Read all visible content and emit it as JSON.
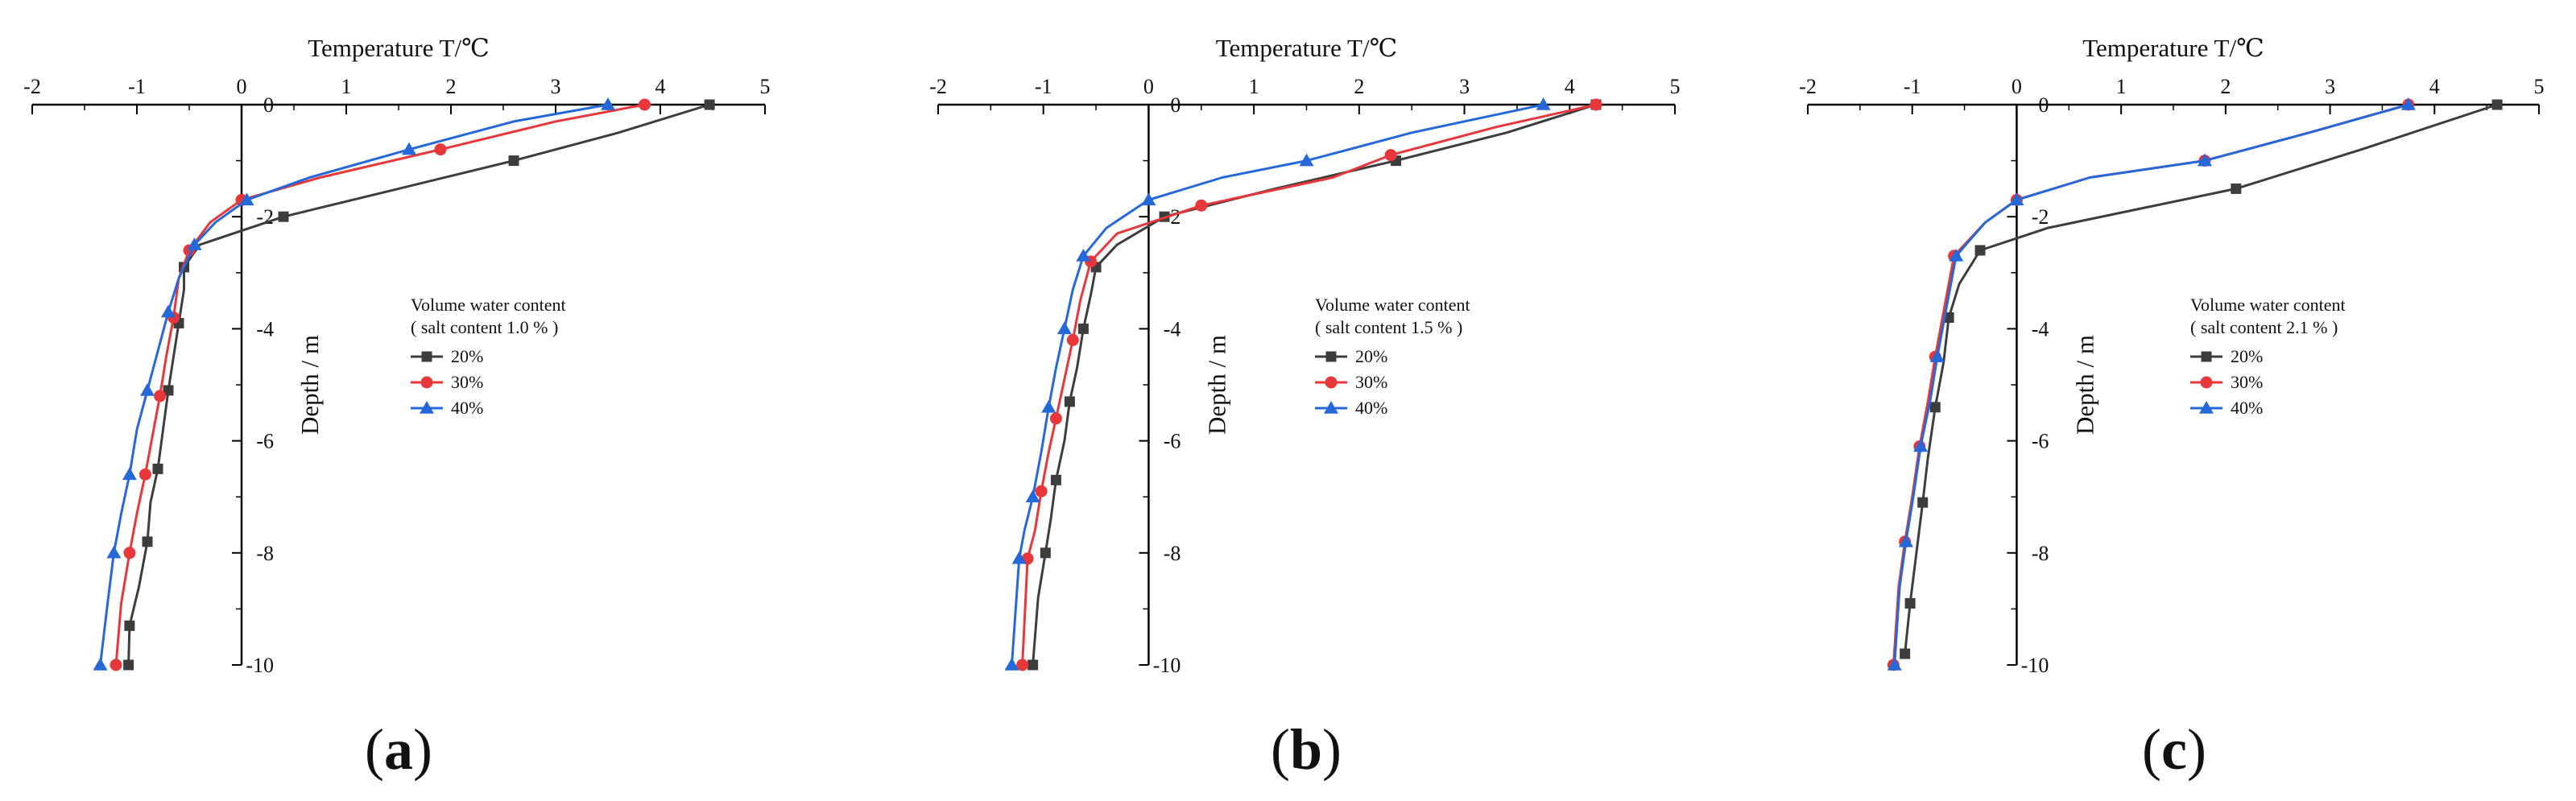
{
  "colors": {
    "s20": "#3d3d3d",
    "s30": "#e8373a",
    "s40": "#2468d9",
    "axis": "#000000"
  },
  "chart_data": [
    {
      "type": "line",
      "panel_label": {
        "open": "(",
        "letter": "a",
        "close": ")"
      },
      "xlabel": "Temperature T/℃",
      "ylabel": "Depth / m",
      "xlim": [
        -2,
        5
      ],
      "ylim": [
        -10,
        0
      ],
      "xticks": [
        "-2",
        "-1",
        "0",
        "1",
        "2",
        "3",
        "4",
        "5"
      ],
      "yticks": [
        "0",
        "-2",
        "-4",
        "-6",
        "-8",
        "-10"
      ],
      "legend_title": "Volume water content",
      "legend_subtitle": "( salt content 1.0 % )",
      "series": [
        {
          "name": "20%",
          "marker": "square",
          "x": [
            4.47,
            3.6,
            2.6,
            1.5,
            0.4,
            -0.4,
            -0.55,
            -0.55,
            -0.6,
            -0.65,
            -0.7,
            -0.75,
            -0.8,
            -0.87,
            -0.9,
            -0.98,
            -1.07,
            -1.08
          ],
          "y": [
            0,
            -0.5,
            -1.0,
            -1.5,
            -2.0,
            -2.5,
            -2.9,
            -3.3,
            -3.9,
            -4.5,
            -5.1,
            -5.8,
            -6.5,
            -7.1,
            -7.8,
            -8.6,
            -9.3,
            -10.0
          ]
        },
        {
          "name": "30%",
          "marker": "circle",
          "x": [
            3.85,
            3.0,
            1.9,
            0.75,
            0.0,
            -0.3,
            -0.5,
            -0.6,
            -0.65,
            -0.72,
            -0.78,
            -0.85,
            -0.92,
            -1.0,
            -1.07,
            -1.15,
            -1.2
          ],
          "y": [
            0,
            -0.3,
            -0.8,
            -1.3,
            -1.7,
            -2.1,
            -2.6,
            -3.1,
            -3.8,
            -4.5,
            -5.2,
            -5.9,
            -6.6,
            -7.3,
            -8.0,
            -8.9,
            -10.0
          ]
        },
        {
          "name": "40%",
          "marker": "triangle",
          "x": [
            3.5,
            2.6,
            1.6,
            0.65,
            0.05,
            -0.25,
            -0.45,
            -0.6,
            -0.7,
            -0.8,
            -0.9,
            -1.0,
            -1.07,
            -1.15,
            -1.22,
            -1.28,
            -1.35
          ],
          "y": [
            0,
            -0.3,
            -0.8,
            -1.3,
            -1.7,
            -2.1,
            -2.5,
            -3.1,
            -3.7,
            -4.4,
            -5.1,
            -5.8,
            -6.6,
            -7.3,
            -8.0,
            -8.9,
            -10.0
          ]
        }
      ]
    },
    {
      "type": "line",
      "panel_label": {
        "open": "(",
        "letter": "b",
        "close": ")"
      },
      "xlabel": "Temperature T/℃",
      "ylabel": "Depth / m",
      "xlim": [
        -2,
        5
      ],
      "ylim": [
        -10,
        0
      ],
      "xticks": [
        "-2",
        "-1",
        "0",
        "1",
        "2",
        "3",
        "4",
        "5"
      ],
      "yticks": [
        "0",
        "-2",
        "-4",
        "-6",
        "-8",
        "-10"
      ],
      "legend_title": "Volume water content",
      "legend_subtitle": "( salt content 1.5 % )",
      "series": [
        {
          "name": "20%",
          "marker": "square",
          "x": [
            4.25,
            3.4,
            2.35,
            1.2,
            0.15,
            -0.3,
            -0.5,
            -0.55,
            -0.62,
            -0.68,
            -0.75,
            -0.8,
            -0.88,
            -0.93,
            -0.98,
            -1.05,
            -1.1
          ],
          "y": [
            0,
            -0.5,
            -1.0,
            -1.5,
            -2.0,
            -2.5,
            -2.9,
            -3.4,
            -4.0,
            -4.7,
            -5.3,
            -6.0,
            -6.7,
            -7.4,
            -8.0,
            -8.8,
            -10.0
          ]
        },
        {
          "name": "30%",
          "marker": "circle",
          "x": [
            4.25,
            3.3,
            2.3,
            1.75,
            0.5,
            -0.3,
            -0.55,
            -0.65,
            -0.72,
            -0.8,
            -0.88,
            -0.95,
            -1.02,
            -1.08,
            -1.15,
            -1.2
          ],
          "y": [
            0,
            -0.4,
            -0.9,
            -1.3,
            -1.8,
            -2.3,
            -2.8,
            -3.5,
            -4.2,
            -4.9,
            -5.6,
            -6.2,
            -6.9,
            -7.6,
            -8.1,
            -10.0
          ]
        },
        {
          "name": "40%",
          "marker": "triangle",
          "x": [
            3.75,
            2.5,
            1.5,
            0.7,
            0.0,
            -0.4,
            -0.62,
            -0.72,
            -0.8,
            -0.88,
            -0.95,
            -1.02,
            -1.1,
            -1.18,
            -1.23,
            -1.3
          ],
          "y": [
            0,
            -0.5,
            -1.0,
            -1.3,
            -1.7,
            -2.2,
            -2.7,
            -3.3,
            -4.0,
            -4.7,
            -5.4,
            -6.2,
            -7.0,
            -7.6,
            -8.1,
            -10.0
          ]
        }
      ]
    },
    {
      "type": "line",
      "panel_label": {
        "open": "(",
        "letter": "c",
        "close": ")"
      },
      "xlabel": "Temperature T/℃",
      "ylabel": "Depth / m",
      "xlim": [
        -2,
        5
      ],
      "ylim": [
        -10,
        0
      ],
      "xticks": [
        "-2",
        "-1",
        "0",
        "1",
        "2",
        "3",
        "4",
        "5"
      ],
      "yticks": [
        "0",
        "-2",
        "-4",
        "-6",
        "-8",
        "-10"
      ],
      "legend_title": "Volume water content",
      "legend_subtitle": "( salt content 2.1 % )",
      "series": [
        {
          "name": "20%",
          "marker": "square",
          "x": [
            4.6,
            3.3,
            2.1,
            0.3,
            -0.35,
            -0.55,
            -0.65,
            -0.7,
            -0.78,
            -0.85,
            -0.9,
            -0.96,
            -1.02,
            -1.07
          ],
          "y": [
            0,
            -0.8,
            -1.5,
            -2.2,
            -2.6,
            -3.2,
            -3.8,
            -4.6,
            -5.4,
            -6.3,
            -7.1,
            -8.0,
            -8.9,
            -9.8
          ]
        },
        {
          "name": "30%",
          "marker": "circle",
          "x": [
            3.75,
            2.8,
            1.8,
            0.7,
            0.0,
            -0.3,
            -0.6,
            -0.68,
            -0.78,
            -0.85,
            -0.93,
            -1.0,
            -1.07,
            -1.13,
            -1.18
          ],
          "y": [
            0,
            -0.5,
            -1.0,
            -1.3,
            -1.7,
            -2.1,
            -2.7,
            -3.5,
            -4.5,
            -5.3,
            -6.1,
            -7.0,
            -7.8,
            -8.6,
            -10.0
          ]
        },
        {
          "name": "40%",
          "marker": "triangle",
          "x": [
            3.75,
            2.8,
            1.8,
            0.7,
            0.0,
            -0.3,
            -0.58,
            -0.66,
            -0.76,
            -0.83,
            -0.92,
            -0.99,
            -1.06,
            -1.12,
            -1.17
          ],
          "y": [
            0,
            -0.5,
            -1.0,
            -1.3,
            -1.7,
            -2.1,
            -2.7,
            -3.5,
            -4.5,
            -5.3,
            -6.1,
            -7.0,
            -7.8,
            -8.6,
            -10.0
          ]
        }
      ]
    }
  ]
}
